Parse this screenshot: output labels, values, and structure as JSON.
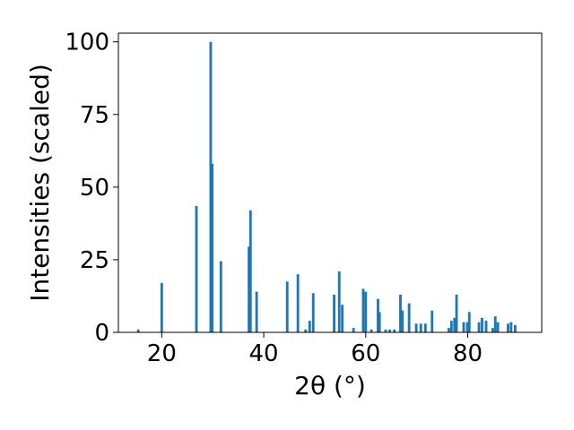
{
  "chart_data": {
    "type": "bar",
    "title": "",
    "xlabel": "2θ (°)",
    "ylabel": "Intensities (scaled)",
    "xlim": [
      11.5,
      94.5
    ],
    "ylim": [
      0,
      100
    ],
    "xticks": [
      20,
      40,
      60,
      80
    ],
    "yticks": [
      0,
      25,
      50,
      75,
      100
    ],
    "grid": false,
    "bar_color": "#1f77b4",
    "bar_width": 0.5,
    "x": [
      15.4,
      20.0,
      26.8,
      29.6,
      29.9,
      31.6,
      37.1,
      37.4,
      38.6,
      44.6,
      46.7,
      48.2,
      49.0,
      49.7,
      53.8,
      54.8,
      55.4,
      57.6,
      59.5,
      60.0,
      61.1,
      62.4,
      62.7,
      63.9,
      64.7,
      65.6,
      66.8,
      67.2,
      68.5,
      69.9,
      70.8,
      71.7,
      73.0,
      76.3,
      76.8,
      77.4,
      77.8,
      79.2,
      79.9,
      80.3,
      82.2,
      82.8,
      83.6,
      84.9,
      85.4,
      85.9,
      87.9,
      88.5,
      89.3
    ],
    "values": [
      1,
      17,
      43.5,
      100,
      58,
      24.5,
      29.5,
      42,
      14,
      17.5,
      20,
      1,
      4,
      13.5,
      13,
      21,
      9.5,
      1.5,
      15,
      14,
      1,
      11.5,
      7,
      1,
      1,
      1,
      13,
      7.5,
      10,
      3,
      3,
      3,
      7.5,
      1.5,
      4,
      5,
      13,
      3.5,
      3.5,
      7,
      3.5,
      5,
      4,
      1.5,
      5.5,
      3.5,
      3,
      3.5,
      2.5
    ]
  }
}
